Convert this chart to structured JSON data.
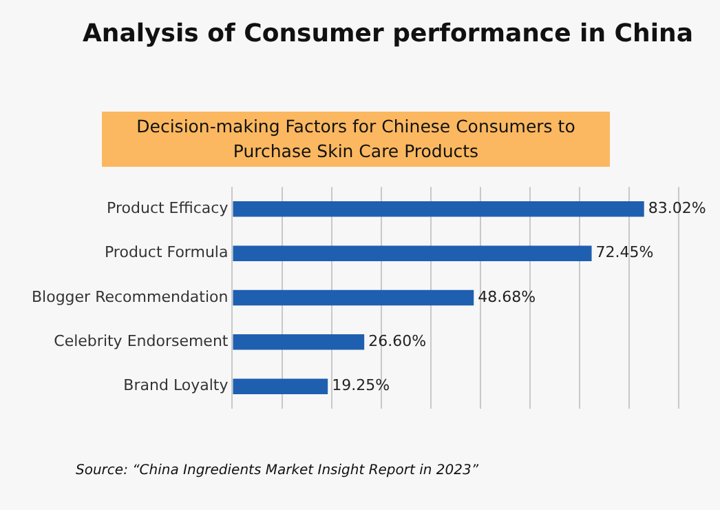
{
  "chart_data": {
    "type": "bar",
    "orientation": "horizontal",
    "title": "Analysis of Consumer performance in China",
    "subtitle": "Decision-making Factors for Chinese Consumers to Purchase Skin Care Products",
    "categories": [
      "Product Efficacy",
      "Product Formula",
      "Blogger Recommendation",
      "Celebrity Endorsement",
      "Brand Loyalty"
    ],
    "values": [
      83.02,
      72.45,
      48.68,
      26.6,
      19.25
    ],
    "value_labels": [
      "83.02%",
      "72.45%",
      "48.68%",
      "26.60%",
      "19.25%"
    ],
    "color": "#1f5fb0",
    "xlim": [
      0,
      90
    ],
    "xticks": [
      {
        "value": 0,
        "label": null
      },
      {
        "value": 10,
        "label": null
      },
      {
        "value": 20,
        "label": null
      },
      {
        "value": 30,
        "label": null
      },
      {
        "value": 40,
        "label": null
      },
      {
        "value": 50,
        "label": null
      },
      {
        "value": 60,
        "label": null
      },
      {
        "value": 70,
        "label": null
      },
      {
        "value": 80,
        "label": null
      },
      {
        "value": 90,
        "label": null
      }
    ],
    "grid": "x",
    "tick_labels": "y",
    "legend": false,
    "annotations": [
      "Source: “China Ingredients Market Insight Report in 2023”"
    ]
  }
}
